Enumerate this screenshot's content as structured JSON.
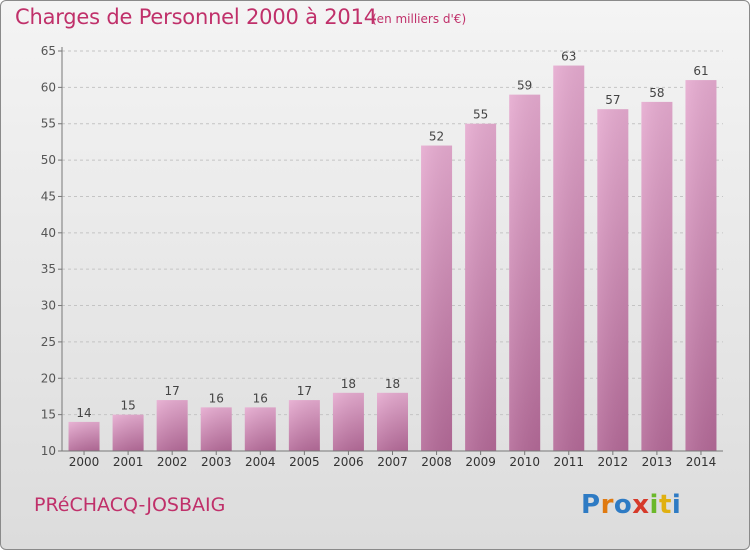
{
  "header": {
    "title": "Charges de Personnel 2000 à 2014",
    "subtitle": "(en milliers d'€)"
  },
  "footer": {
    "commune": "PRéCHACQ-JOSBAIG",
    "logo": {
      "letters": [
        "P",
        "r",
        "o",
        "x",
        "i",
        "t",
        "i"
      ],
      "colors": [
        "#2e7bc4",
        "#e07a10",
        "#2e7bc4",
        "#d63a2a",
        "#6bb82a",
        "#e0b010",
        "#2e7bc4"
      ]
    }
  },
  "colors": {
    "bar_top": "#e6abd0",
    "bar_bottom": "#b46a98",
    "text": "#c0306a",
    "axis": "#777777"
  },
  "chart_data": {
    "type": "bar",
    "categories": [
      "2000",
      "2001",
      "2002",
      "2003",
      "2004",
      "2005",
      "2006",
      "2007",
      "2008",
      "2009",
      "2010",
      "2011",
      "2012",
      "2013",
      "2014"
    ],
    "values": [
      14,
      15,
      17,
      16,
      16,
      17,
      18,
      18,
      52,
      55,
      59,
      63,
      57,
      58,
      61
    ],
    "title": "Charges de Personnel 2000 à 2014",
    "subtitle": "(en milliers d'€)",
    "xlabel": "",
    "ylabel": "",
    "ylim": [
      10,
      65
    ],
    "yticks": [
      10,
      15,
      20,
      25,
      30,
      35,
      40,
      45,
      50,
      55,
      60,
      65
    ],
    "grid": "horizontal-dashed",
    "legend": "none"
  }
}
